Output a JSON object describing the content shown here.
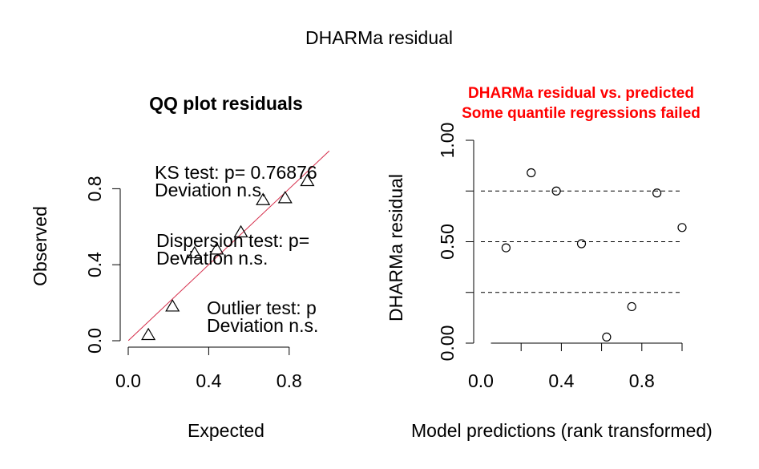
{
  "page_title": "DHARMa residual",
  "chart_data": [
    {
      "type": "scatter",
      "title": "QQ plot residuals",
      "xlabel": "Expected",
      "ylabel": "Observed",
      "xlim": [
        0,
        1
      ],
      "ylim": [
        0,
        1
      ],
      "x_ticks": [
        "0.0",
        "0.4",
        "0.8"
      ],
      "y_ticks": [
        "0.0",
        "0.4",
        "0.8"
      ],
      "reference_line": "y = x",
      "reference_line_color": "#d6304d",
      "marker": "open-triangle",
      "points": [
        {
          "x": 0.1,
          "y": 0.03
        },
        {
          "x": 0.22,
          "y": 0.18
        },
        {
          "x": 0.33,
          "y": 0.46
        },
        {
          "x": 0.44,
          "y": 0.48
        },
        {
          "x": 0.56,
          "y": 0.57
        },
        {
          "x": 0.67,
          "y": 0.74
        },
        {
          "x": 0.78,
          "y": 0.75
        },
        {
          "x": 0.89,
          "y": 0.84
        }
      ],
      "annotations": [
        {
          "line1": "KS test: p= 0.76876",
          "line2": "Deviation  n.s."
        },
        {
          "line1": "Dispersion test: p=",
          "line2": "Deviation  n.s."
        },
        {
          "line1": "Outlier test: p",
          "line2": "Deviation  n.s."
        }
      ]
    },
    {
      "type": "scatter",
      "title": "DHARMa residual vs. predicted",
      "subtitle": "Some quantile regressions failed",
      "title_color": "#ff0000",
      "xlabel": "Model predictions (rank transformed)",
      "ylabel": "DHARMa residual",
      "xlim": [
        0,
        1
      ],
      "ylim": [
        0,
        1
      ],
      "x_ticks": [
        "0.0",
        "0.4",
        "0.8"
      ],
      "y_ticks": [
        "0.00",
        "0.50",
        "1.00"
      ],
      "hlines": [
        0.25,
        0.5,
        0.75
      ],
      "hline_style": "dashed",
      "marker": "open-circle",
      "points": [
        {
          "x": 0.125,
          "y": 0.47
        },
        {
          "x": 0.25,
          "y": 0.84
        },
        {
          "x": 0.375,
          "y": 0.75
        },
        {
          "x": 0.5,
          "y": 0.49
        },
        {
          "x": 0.625,
          "y": 0.03
        },
        {
          "x": 0.75,
          "y": 0.18
        },
        {
          "x": 0.875,
          "y": 0.74
        },
        {
          "x": 1.0,
          "y": 0.57
        }
      ]
    }
  ]
}
